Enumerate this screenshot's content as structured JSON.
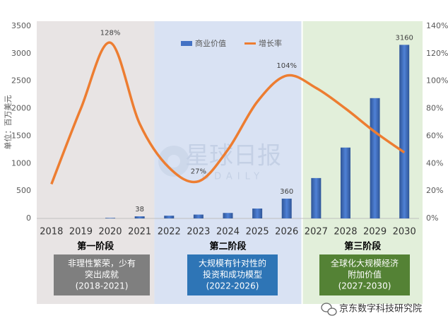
{
  "chart_data": {
    "type": "bar-line",
    "y_axis_label": "单位：百万美元",
    "categories": [
      "2018",
      "2019",
      "2020",
      "2021",
      "2022",
      "2023",
      "2024",
      "2025",
      "2026",
      "2027",
      "2028",
      "2029",
      "2030"
    ],
    "series": [
      {
        "name": "商业价值",
        "type": "bar",
        "color": "#4472c4",
        "axis": "y",
        "values": [
          0,
          0,
          10,
          38,
          50,
          70,
          100,
          180,
          360,
          735,
          1290,
          2190,
          3160
        ],
        "value_labels": [
          null,
          null,
          null,
          "38",
          null,
          null,
          null,
          null,
          "360",
          null,
          null,
          null,
          "3160"
        ]
      },
      {
        "name": "增长率",
        "type": "line",
        "color": "#ed7d31",
        "axis": "y2",
        "values": [
          25,
          80,
          128,
          69,
          37,
          27,
          50,
          85,
          104,
          95,
          80,
          63,
          48
        ],
        "value_labels": [
          null,
          null,
          "128%",
          null,
          null,
          "27%",
          null,
          null,
          "104%",
          null,
          null,
          null,
          null
        ]
      }
    ],
    "ylim": [
      0,
      3500
    ],
    "yticks": [
      0,
      500,
      1000,
      1500,
      2000,
      2500,
      3000,
      3500
    ],
    "y2lim": [
      0,
      140
    ],
    "y2ticks": [
      {
        "value": 0,
        "label": "0%"
      },
      {
        "value": 20,
        "label": "20%"
      },
      {
        "value": 40,
        "label": "40%"
      },
      {
        "value": 60,
        "label": "60%"
      },
      {
        "value": 80,
        "label": "80%"
      },
      {
        "value": 100,
        "label": "100%"
      },
      {
        "value": 120,
        "label": "120%"
      },
      {
        "value": 140,
        "label": "140%"
      }
    ],
    "grid": false,
    "phases": [
      {
        "name": "第一阶段",
        "box_lines": [
          "非理性繁荣，少有",
          "突出成就",
          "(2018-2021)"
        ],
        "background": "#e8e4e4",
        "box_color": "#7f7f7f"
      },
      {
        "name": "第二阶段",
        "box_lines": [
          "大规模有针对性的",
          "投资和成功模型",
          "(2022-2026)"
        ],
        "background": "#d9e2f3",
        "box_color": "#2e75b6"
      },
      {
        "name": "第三阶段",
        "box_lines": [
          "全球化大规模经济",
          "附加价值",
          "(2027-2030)"
        ],
        "background": "#e2efda",
        "box_color": "#548235"
      }
    ],
    "watermark": {
      "title": "星球日报",
      "subtitle": "ODAILY"
    },
    "footer": "京东数字科技研究院"
  }
}
